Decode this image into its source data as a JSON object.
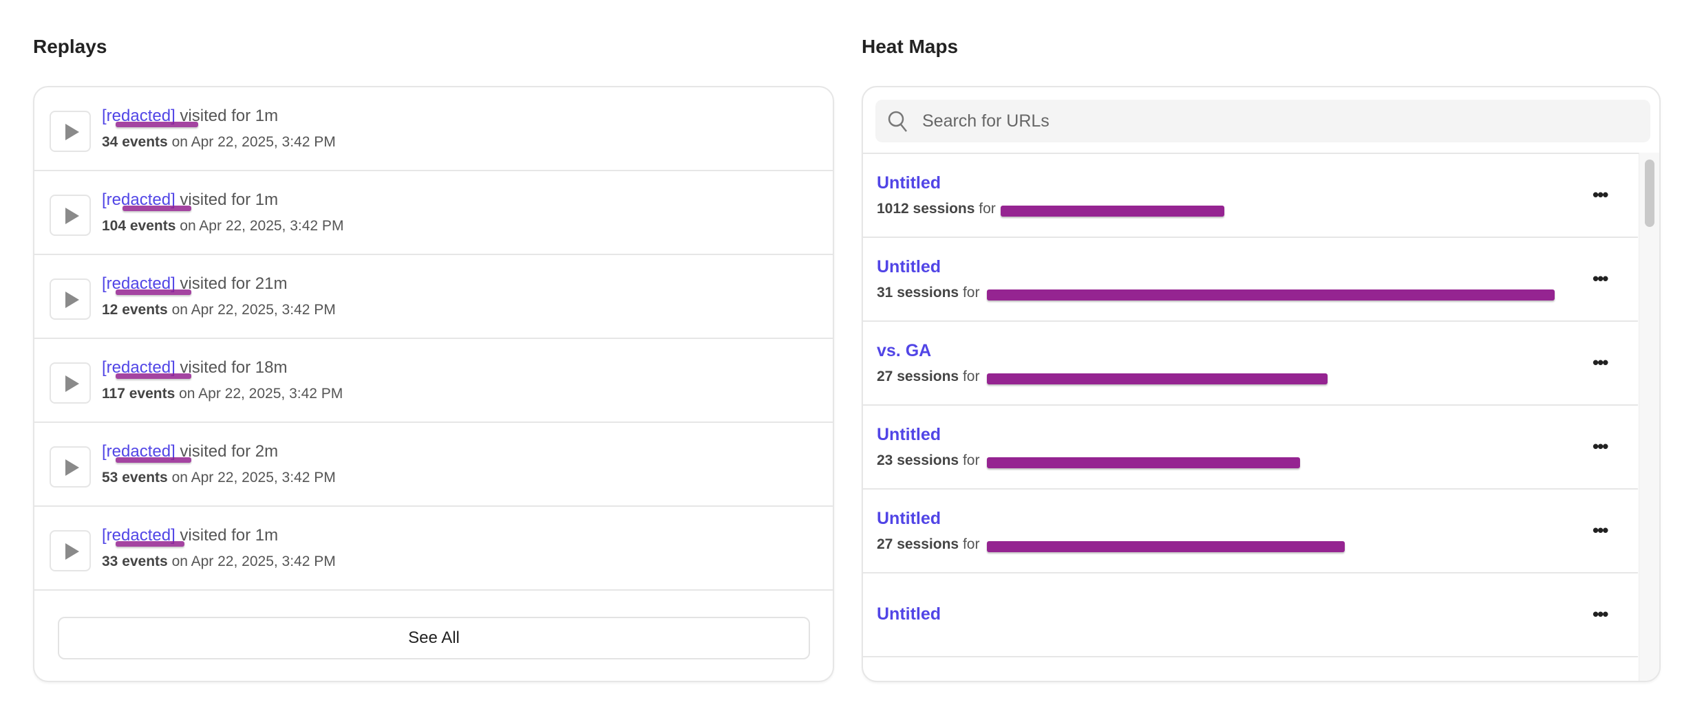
{
  "replays": {
    "title": "Replays",
    "items": [
      {
        "name": "[redacted]",
        "duration": "visited for 1m",
        "events": "34 events",
        "date": "on Apr 22, 2025, 3:42 PM"
      },
      {
        "name": "[redacted]",
        "duration": "visited for 1m",
        "events": "104 events",
        "date": "on Apr 22, 2025, 3:42 PM"
      },
      {
        "name": "[redacted]",
        "duration": "visited for 21m",
        "events": "12 events",
        "date": "on Apr 22, 2025, 3:42 PM"
      },
      {
        "name": "[redacted]",
        "duration": "visited for 18m",
        "events": "117 events",
        "date": "on Apr 22, 2025, 3:42 PM"
      },
      {
        "name": "[redacted]",
        "duration": "visited for 2m",
        "events": "53 events",
        "date": "on Apr 22, 2025, 3:42 PM"
      },
      {
        "name": "[redacted]",
        "duration": "visited for 1m",
        "events": "33 events",
        "date": "on Apr 22, 2025, 3:42 PM"
      }
    ],
    "see_all": "See All"
  },
  "heatmaps": {
    "title": "Heat Maps",
    "search_placeholder": "Search for URLs",
    "items": [
      {
        "name": "Untitled",
        "sessions": "1012 sessions",
        "for": "for",
        "url": "[redacted]"
      },
      {
        "name": "Untitled",
        "sessions": "31 sessions",
        "for": "for",
        "url": "[redacted]"
      },
      {
        "name": "vs. GA",
        "sessions": "27 sessions",
        "for": "for",
        "url": "[redacted]"
      },
      {
        "name": "Untitled",
        "sessions": "23 sessions",
        "for": "for",
        "url": "[redacted]"
      },
      {
        "name": "Untitled",
        "sessions": "27 sessions",
        "for": "for",
        "url": "[redacted]"
      },
      {
        "name": "Untitled"
      }
    ],
    "more_icon": "ellipsis-icon"
  },
  "colors": {
    "link": "#5145e6",
    "redaction": "#952491"
  }
}
